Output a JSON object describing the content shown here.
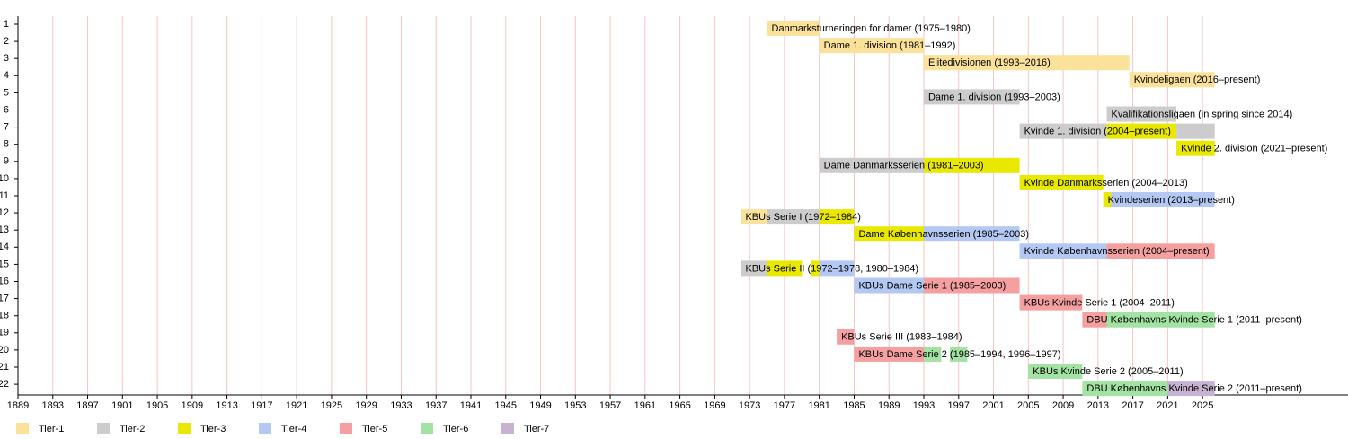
{
  "chart_data": {
    "type": "timeline",
    "xlim": [
      1889,
      2041.7
    ],
    "xticks": [
      1889,
      1893,
      1897,
      1901,
      1905,
      1909,
      1913,
      1917,
      1921,
      1925,
      1929,
      1933,
      1937,
      1941,
      1945,
      1949,
      1953,
      1957,
      1961,
      1965,
      1969,
      1973,
      1977,
      1981,
      1985,
      1989,
      1993,
      1997,
      2001,
      2005,
      2009,
      2013,
      2017,
      2021,
      2025
    ],
    "grid": true,
    "tiers": [
      {
        "name": "Tier-1",
        "color": "#fbe29a"
      },
      {
        "name": "Tier-2",
        "color": "#cccccc"
      },
      {
        "name": "Tier-3",
        "color": "#e8e800"
      },
      {
        "name": "Tier-4",
        "color": "#b3c8f2"
      },
      {
        "name": "Tier-5",
        "color": "#f5a0a0"
      },
      {
        "name": "Tier-6",
        "color": "#a2e2a2"
      },
      {
        "name": "Tier-7",
        "color": "#c8b2d2"
      }
    ],
    "rows": [
      {
        "number": "1",
        "label": "Danmarksturneringen for damer (1975–1980)",
        "segments": [
          {
            "start": 1975,
            "end": 1981,
            "tier": 0
          }
        ]
      },
      {
        "number": "2",
        "label": "Dame 1. division (1981–1992)",
        "segments": [
          {
            "start": 1981,
            "end": 1993,
            "tier": 0
          }
        ]
      },
      {
        "number": "3",
        "label": "Elitedivisionen (1993–2016)",
        "segments": [
          {
            "start": 1993,
            "end": 2016.6,
            "tier": 0
          }
        ]
      },
      {
        "number": "4",
        "label": "Kvindeligaen (2016–present)",
        "segments": [
          {
            "start": 2016.6,
            "end": 2026.4,
            "tier": 0
          }
        ]
      },
      {
        "number": "5",
        "label": "Dame 1. division (1993–2003)",
        "segments": [
          {
            "start": 1993,
            "end": 2004,
            "tier": 1
          }
        ]
      },
      {
        "number": "6",
        "label": "Kvalifikationsligaen (in spring since 2014)",
        "segments": [
          {
            "start": 2014,
            "end": 2022,
            "tier": 1
          }
        ]
      },
      {
        "number": "7",
        "label": "Kvinde 1. division (2004–present)",
        "segments": [
          {
            "start": 2004,
            "end": 2014,
            "tier": 1
          },
          {
            "start": 2014,
            "end": 2022,
            "tier": 2
          },
          {
            "start": 2022,
            "end": 2026.4,
            "tier": 1
          }
        ]
      },
      {
        "number": "8",
        "label": "Kvinde 2. division (2021–present)",
        "segments": [
          {
            "start": 2022,
            "end": 2026.4,
            "tier": 2
          }
        ]
      },
      {
        "number": "9",
        "label": "Dame Danmarksserien (1981–2003)",
        "segments": [
          {
            "start": 1981,
            "end": 1993,
            "tier": 1
          },
          {
            "start": 1993,
            "end": 2004,
            "tier": 2
          }
        ]
      },
      {
        "number": "10",
        "label": "Kvinde Danmarksserien (2004–2013)",
        "segments": [
          {
            "start": 2004,
            "end": 2013.6,
            "tier": 2
          }
        ]
      },
      {
        "number": "11",
        "label": "Kvindeserien (2013–present)",
        "segments": [
          {
            "start": 2013.6,
            "end": 2014.5,
            "tier": 2
          },
          {
            "start": 2014.5,
            "end": 2026.4,
            "tier": 3
          }
        ]
      },
      {
        "number": "12",
        "label": "KBUs Serie I (1972–1984)",
        "segments": [
          {
            "start": 1972,
            "end": 1975,
            "tier": 0
          },
          {
            "start": 1975,
            "end": 1981,
            "tier": 1
          },
          {
            "start": 1981,
            "end": 1985,
            "tier": 2
          }
        ]
      },
      {
        "number": "13",
        "label": "Dame Københavnsserien (1985–2003)",
        "segments": [
          {
            "start": 1985,
            "end": 1993,
            "tier": 2
          },
          {
            "start": 1993,
            "end": 2004,
            "tier": 3
          }
        ]
      },
      {
        "number": "14",
        "label": "Kvinde Københavnsserien (2004–present)",
        "segments": [
          {
            "start": 2004,
            "end": 2014,
            "tier": 3
          },
          {
            "start": 2014,
            "end": 2026.4,
            "tier": 4
          }
        ]
      },
      {
        "number": "15",
        "label": "KBUs Serie II (1972–1978, 1980–1984)",
        "segments": [
          {
            "start": 1972,
            "end": 1975,
            "tier": 1
          },
          {
            "start": 1975,
            "end": 1979,
            "tier": 2
          },
          {
            "start": 1980,
            "end": 1981,
            "tier": 2
          },
          {
            "start": 1981,
            "end": 1985,
            "tier": 3
          }
        ]
      },
      {
        "number": "16",
        "label": "KBUs Dame Serie 1 (1985–2003)",
        "segments": [
          {
            "start": 1985,
            "end": 1993,
            "tier": 3
          },
          {
            "start": 1993,
            "end": 2004,
            "tier": 4
          }
        ]
      },
      {
        "number": "17",
        "label": "KBUs Kvinde Serie 1 (2004–2011)",
        "segments": [
          {
            "start": 2004,
            "end": 2011.2,
            "tier": 4
          }
        ]
      },
      {
        "number": "18",
        "label": "DBU Københavns Kvinde Serie 1 (2011–present)",
        "segments": [
          {
            "start": 2011.2,
            "end": 2014,
            "tier": 4
          },
          {
            "start": 2014,
            "end": 2026.4,
            "tier": 5
          }
        ]
      },
      {
        "number": "19",
        "label": "KBUs Serie III (1983–1984)",
        "segments": [
          {
            "start": 1983,
            "end": 1985,
            "tier": 4
          }
        ]
      },
      {
        "number": "20",
        "label": "KBUs Dame Serie 2 (1985–1994, 1996–1997)",
        "segments": [
          {
            "start": 1985,
            "end": 1993,
            "tier": 4
          },
          {
            "start": 1993,
            "end": 1995,
            "tier": 5
          },
          {
            "start": 1996,
            "end": 1998,
            "tier": 5
          }
        ]
      },
      {
        "number": "21",
        "label": "KBUs Kvinde Serie 2 (2005–2011)",
        "segments": [
          {
            "start": 2005,
            "end": 2011.2,
            "tier": 5
          }
        ]
      },
      {
        "number": "22",
        "label": "DBU Københavns Kvinde Serie 2 (2011–present)",
        "segments": [
          {
            "start": 2011.2,
            "end": 2021,
            "tier": 5
          },
          {
            "start": 2021,
            "end": 2026.4,
            "tier": 6
          }
        ]
      }
    ]
  }
}
